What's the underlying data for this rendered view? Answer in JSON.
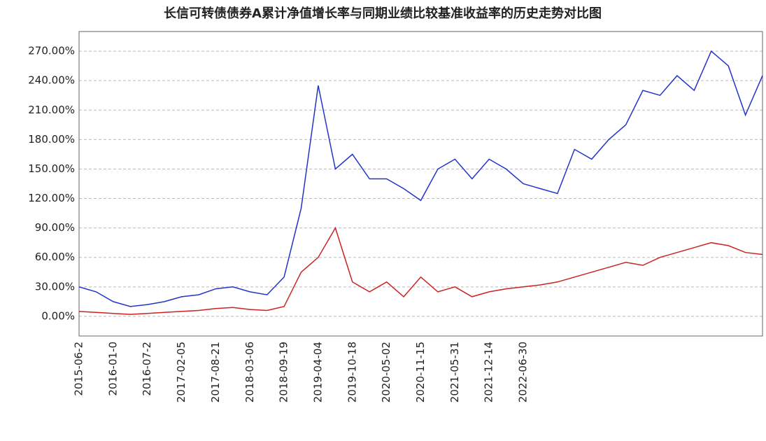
{
  "chart_data": {
    "type": "line",
    "title": "长信可转债债券A累计净值增长率与同期业绩比较基准收益率的历史走势对比图",
    "categories": [
      "2015-06-2",
      null,
      "2016-01-0",
      null,
      "2016-07-2",
      null,
      "2017-02-05",
      null,
      "2017-08-21",
      null,
      "2018-03-06",
      null,
      "2018-09-19",
      null,
      "2019-04-04",
      null,
      "2019-10-18",
      null,
      "2020-05-02",
      null,
      "2020-11-15",
      null,
      "2021-05-31",
      null,
      "2021-12-14",
      null,
      "2022-06-30",
      null,
      null,
      null,
      null,
      null,
      null,
      null,
      null,
      null,
      null,
      null,
      null,
      null,
      null
    ],
    "series": [
      {
        "color": "#2233cc",
        "values": [
          30,
          25,
          15,
          10,
          12,
          15,
          20,
          22,
          28,
          30,
          25,
          22,
          40,
          110,
          235,
          150,
          165,
          140,
          140,
          130,
          118,
          150,
          160,
          140,
          160,
          150,
          135,
          130,
          125,
          170,
          160,
          180,
          195,
          230,
          225,
          245,
          230,
          270,
          255,
          205,
          245
        ]
      },
      {
        "color": "#cc2222",
        "values": [
          5,
          4,
          3,
          2,
          3,
          4,
          5,
          6,
          8,
          9,
          7,
          6,
          10,
          45,
          60,
          90,
          35,
          25,
          35,
          20,
          40,
          25,
          30,
          20,
          25,
          28,
          30,
          32,
          35,
          40,
          45,
          50,
          55,
          52,
          60,
          65,
          70,
          75,
          72,
          65,
          63
        ]
      }
    ],
    "ylim": [
      -20,
      290
    ],
    "yticks": [
      {
        "value": 0,
        "label": "0.00%"
      },
      {
        "value": 30,
        "label": "30.00%"
      },
      {
        "value": 60,
        "label": "60.00%"
      },
      {
        "value": 90,
        "label": "90.00%"
      },
      {
        "value": 120,
        "label": "120.00%"
      },
      {
        "value": 150,
        "label": "150.00%"
      },
      {
        "value": 180,
        "label": "180.00%"
      },
      {
        "value": 210,
        "label": "210.00%"
      },
      {
        "value": 240,
        "label": "240.00%"
      },
      {
        "value": 270,
        "label": "270.00%"
      }
    ],
    "grid": true
  }
}
